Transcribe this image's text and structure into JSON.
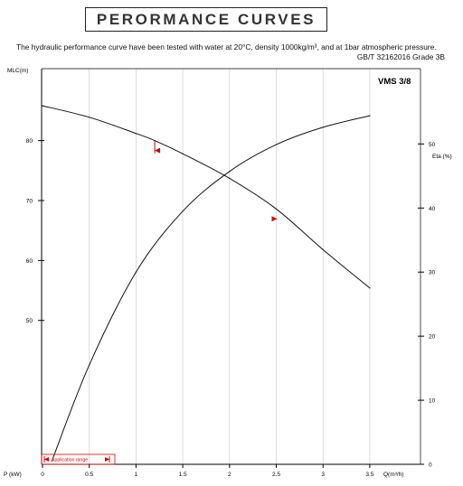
{
  "header": {
    "title": "PERORMANCE CURVES",
    "subtitle": "The hydraulic performance curve have been tested with water at 20°C, density 1000kg/m³, and at 1bar atmospheric pressure.",
    "standard": "GB/T 32162016 Grade 3B"
  },
  "colors": {
    "axis": "#000000",
    "curve": "#111111",
    "marker": "#d40000",
    "grid": "#cfcfcf"
  },
  "chart_data": {
    "type": "line",
    "model_label": "VMS 3/8",
    "x_axis": {
      "label": "Q(m³/h)",
      "left_label": "P (kW)",
      "ticks": [
        "0",
        "0.5",
        "1",
        "1.5",
        "2",
        "2.5",
        "3",
        "3.5"
      ],
      "range": [
        0,
        4.05
      ]
    },
    "y_axis_left": {
      "label": "MLC(m)",
      "ticks": [
        "50",
        "60",
        "70",
        "80"
      ],
      "tick_values": [
        50,
        60,
        70,
        80
      ],
      "range": [
        26,
        92
      ]
    },
    "y_axis_right": {
      "label": "Eta (%)",
      "ticks": [
        "0",
        "10",
        "20",
        "30",
        "40",
        "50"
      ],
      "tick_values": [
        0,
        10,
        20,
        30,
        40,
        50
      ],
      "range": [
        0,
        61.75
      ]
    },
    "grid": "vertical",
    "series": [
      {
        "axis": "left",
        "x": [
          0,
          0.5,
          1.0,
          1.2,
          1.5,
          2.0,
          2.5,
          3.0,
          3.5
        ],
        "y": [
          85.8,
          83.9,
          81.2,
          80.0,
          77.8,
          73.7,
          68.6,
          61.8,
          55.4
        ]
      },
      {
        "axis": "right",
        "x": [
          0.1,
          0.5,
          1.0,
          1.5,
          2.0,
          2.5,
          3.0,
          3.5
        ],
        "y": [
          0.5,
          15.5,
          30.0,
          39.5,
          45.7,
          49.9,
          52.6,
          54.4
        ]
      }
    ],
    "operating_range": [
      1.2,
      2.5
    ],
    "application_range": {
      "label": "Application range"
    }
  }
}
